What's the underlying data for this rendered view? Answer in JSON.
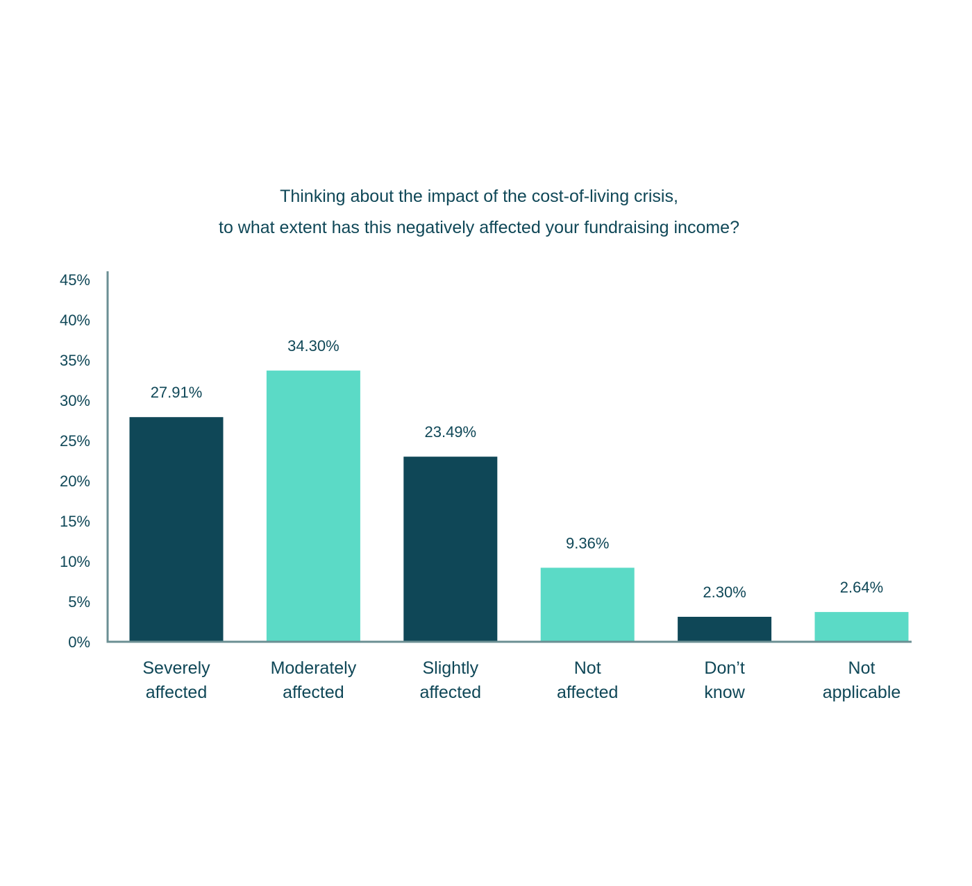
{
  "chart_data": {
    "type": "bar",
    "title_lines": [
      "Thinking about the impact of the cost-of-living crisis,",
      "to what extent has this negatively affected your fundraising income?"
    ],
    "categories": [
      [
        "Severely",
        "affected"
      ],
      [
        "Moderately",
        "affected"
      ],
      [
        "Slightly",
        "affected"
      ],
      [
        "Not",
        "affected"
      ],
      [
        "Don’t",
        "know"
      ],
      [
        "Not",
        "applicable"
      ]
    ],
    "values": [
      27.91,
      34.3,
      23.49,
      9.36,
      2.3,
      2.64
    ],
    "display_values": [
      27.91,
      33.7,
      23.0,
      9.2,
      3.1,
      3.7
    ],
    "value_labels": [
      "27.91%",
      "34.30%",
      "23.49%",
      "9.36%",
      "2.30%",
      "2.64%"
    ],
    "bar_colors": [
      "#0f4757",
      "#5bdac6",
      "#0f4757",
      "#5bdac6",
      "#0f4757",
      "#5bdac6"
    ],
    "ylim": [
      0,
      45
    ],
    "yticks": [
      0,
      5,
      10,
      15,
      20,
      25,
      30,
      35,
      40,
      45
    ],
    "ytick_labels": [
      "0%",
      "5%",
      "10%",
      "15%",
      "20%",
      "25%",
      "30%",
      "35%",
      "40%",
      "45%"
    ],
    "xlabel": "",
    "ylabel": "",
    "grid": false,
    "legend": "none",
    "text_color": "#0f4757",
    "axis_color": "#6b8f93"
  }
}
